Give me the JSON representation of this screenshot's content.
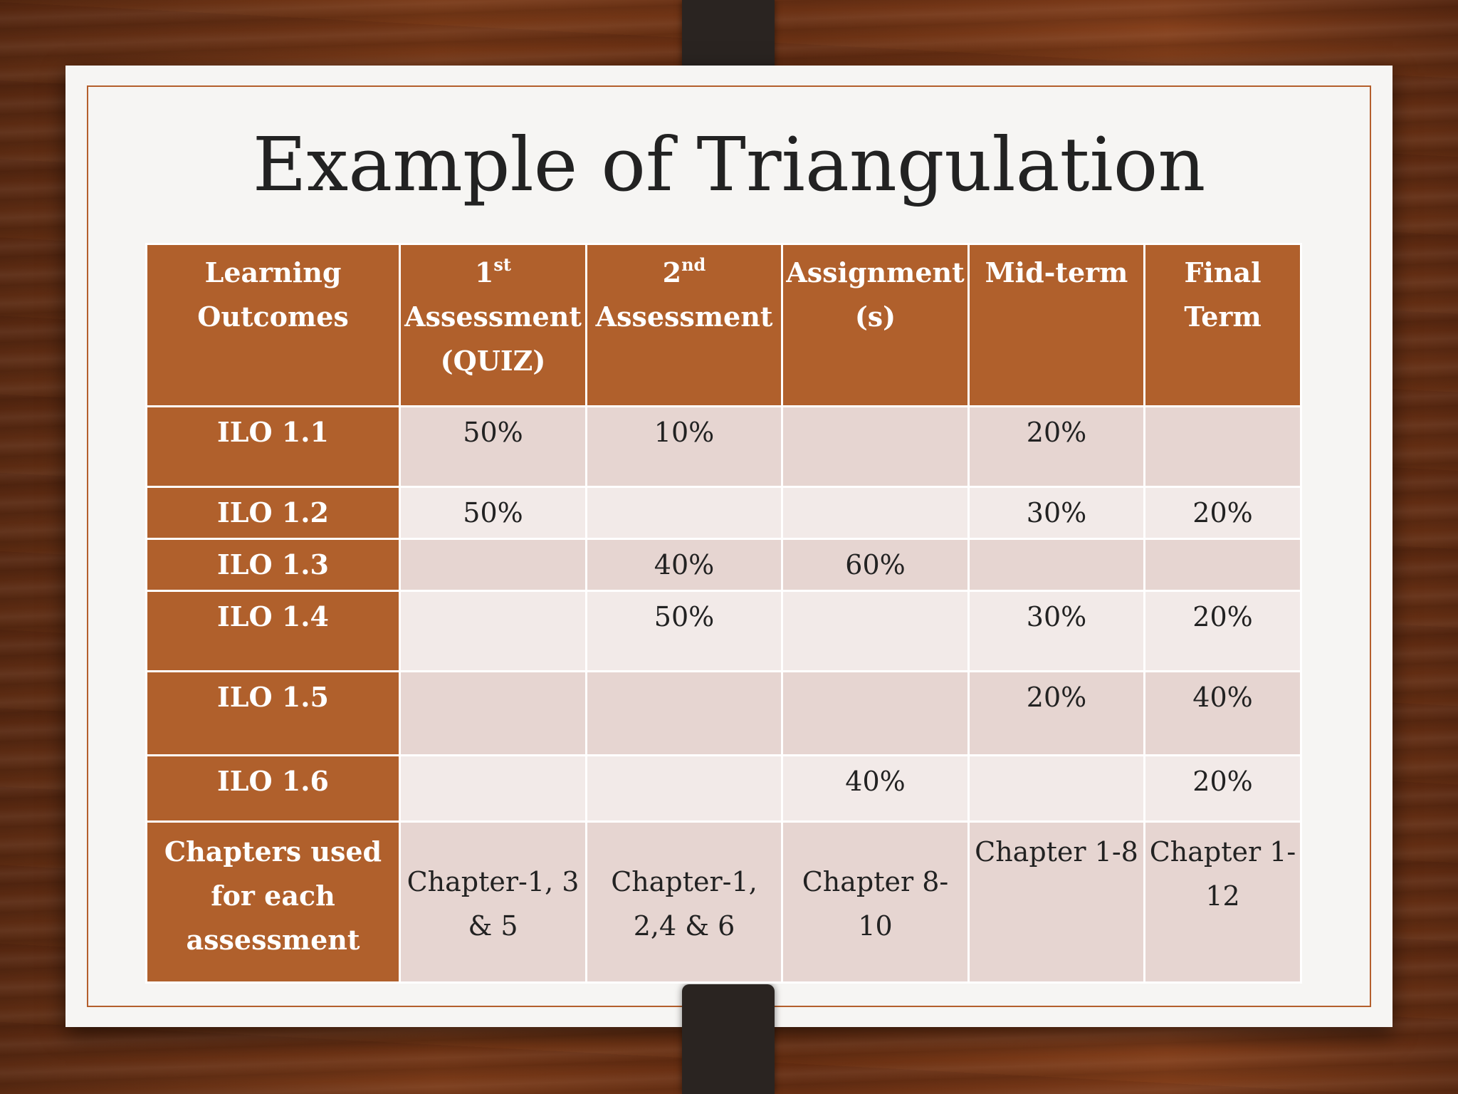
{
  "slide": {
    "title": "Example of Triangulation"
  },
  "table": {
    "headers": {
      "learning_outcomes": [
        "Learning",
        "Outcomes"
      ],
      "assessment1": {
        "num": "1",
        "sup": "st",
        "line2": "Assessment",
        "line3": "(QUIZ)"
      },
      "assessment2": {
        "num": "2",
        "sup": "nd",
        "line2": "Assessment"
      },
      "assignment": [
        "Assignment",
        "(s)"
      ],
      "midterm": [
        "Mid-term"
      ],
      "finalterm": [
        "Final",
        "Term"
      ]
    },
    "rows": [
      {
        "label": "ILO 1.1",
        "cells": [
          "50%",
          "10%",
          "",
          "20%",
          ""
        ]
      },
      {
        "label": "ILO 1.2",
        "cells": [
          "50%",
          "",
          "",
          "30%",
          "20%"
        ]
      },
      {
        "label": "ILO 1.3",
        "cells": [
          "",
          "40%",
          "60%",
          "",
          ""
        ]
      },
      {
        "label": "ILO 1.4",
        "cells": [
          "",
          "50%",
          "",
          "30%",
          "20%"
        ]
      },
      {
        "label": "ILO 1.5",
        "cells": [
          "",
          "",
          "",
          "20%",
          "40%"
        ]
      },
      {
        "label": "ILO 1.6",
        "cells": [
          "",
          "",
          "40%",
          "",
          "20%"
        ]
      }
    ],
    "chapters_row": {
      "label": [
        "Chapters used",
        "for each",
        "assessment"
      ],
      "assessment1": [
        "Chapter-1, 3",
        "& 5"
      ],
      "assessment2": [
        "Chapter-1,",
        "2,4 & 6"
      ],
      "assignment": [
        "Chapter 8-",
        "10"
      ],
      "midterm": [
        "Chapter 1-8"
      ],
      "finalterm": [
        "Chapter 1-",
        "12"
      ]
    }
  },
  "colors": {
    "header_brown": "#b0602c",
    "frame_orange": "#b45f2c",
    "row_dark": "#e6d5d1",
    "row_light": "#f2eae8"
  }
}
